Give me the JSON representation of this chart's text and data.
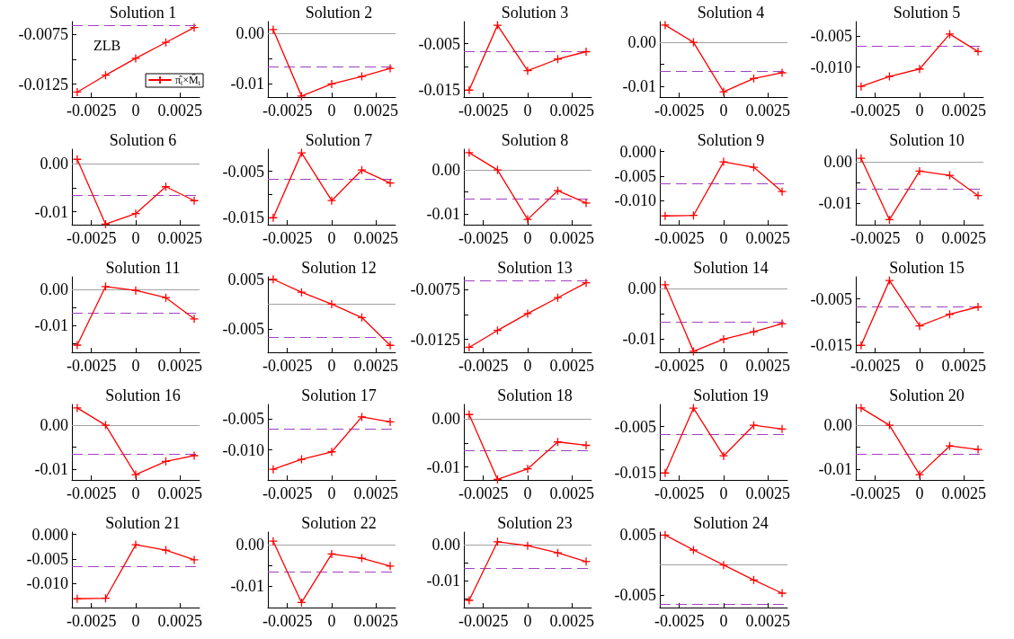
{
  "chart_data": [
    {
      "type": "line",
      "title": "Solution 1",
      "x": [
        -0.0033,
        -0.0017,
        0,
        0.0017,
        0.0033
      ],
      "xlim": [
        -0.0036,
        0.0036
      ],
      "xticks": [
        -0.0025,
        0,
        0.0025
      ],
      "ylim": [
        -0.0138,
        -0.0062
      ],
      "yticks": [
        -0.0075,
        {
          "value": -0.01,
          "label": null
        },
        -0.0125
      ],
      "marker": "cross",
      "line_style": "solid",
      "legend": "bottom right",
      "annotations": [
        "ZLB"
      ],
      "series": [
        {
          "name": "π̂$_{t}$×M̂$_{t}$",
          "color": "#ff0000",
          "values": [
            -0.0133,
            -0.0116,
            -0.0099,
            -0.0083,
            -0.0068
          ]
        }
      ],
      "ref_lines": [
        {
          "axis": "y",
          "value": -0.0066,
          "color": "#a040c0",
          "line_style": "dashed"
        }
      ]
    },
    {
      "type": "line",
      "title": "Solution 2",
      "x": [
        -0.0033,
        -0.0017,
        0,
        0.0017,
        0.0033
      ],
      "xlim": [
        -0.0036,
        0.0036
      ],
      "xticks": [
        -0.0025,
        0,
        0.0025
      ],
      "ylim": [
        -0.0126,
        0.0024
      ],
      "yticks": [
        {
          "value": 0,
          "label": "0.00"
        },
        {
          "value": -0.005,
          "label": null
        },
        -0.01
      ],
      "marker": "cross",
      "line_style": "solid",
      "series": [
        {
          "color": "#ff0000",
          "values": [
            0.0008,
            -0.0124,
            -0.01,
            -0.0085,
            -0.0069
          ]
        }
      ],
      "ref_lines": [
        {
          "axis": "y",
          "value": 0,
          "color": "#a0a0a0",
          "line_style": "solid"
        },
        {
          "axis": "y",
          "value": -0.0066,
          "color": "#a040c0",
          "line_style": "dashed"
        }
      ]
    },
    {
      "type": "line",
      "title": "Solution 3",
      "x": [
        -0.0033,
        -0.0017,
        0,
        0.0017,
        0.0033
      ],
      "xlim": [
        -0.0036,
        0.0036
      ],
      "xticks": [
        -0.0025,
        0,
        0.0025
      ],
      "ylim": [
        -0.0165,
        -0.0002
      ],
      "yticks": [
        -0.005,
        {
          "value": -0.01,
          "label": null
        },
        -0.015
      ],
      "marker": "cross",
      "line_style": "solid",
      "series": [
        {
          "color": "#ff0000",
          "values": [
            -0.015,
            -0.001,
            -0.0108,
            -0.0083,
            -0.0067
          ]
        }
      ],
      "ref_lines": [
        {
          "axis": "y",
          "value": -0.0066,
          "color": "#a040c0",
          "line_style": "dashed"
        }
      ]
    },
    {
      "type": "line",
      "title": "Solution 4",
      "x": [
        -0.0033,
        -0.0017,
        0,
        0.0017,
        0.0033
      ],
      "xlim": [
        -0.0036,
        0.0036
      ],
      "xticks": [
        -0.0025,
        0,
        0.0025
      ],
      "ylim": [
        -0.0124,
        0.0047
      ],
      "yticks": [
        {
          "value": 0,
          "label": "0.00"
        },
        {
          "value": -0.005,
          "label": null
        },
        -0.01
      ],
      "marker": "cross",
      "line_style": "solid",
      "series": [
        {
          "color": "#ff0000",
          "values": [
            0.0039,
            0,
            -0.0112,
            -0.0082,
            -0.0069
          ]
        }
      ],
      "ref_lines": [
        {
          "axis": "y",
          "value": 0,
          "color": "#a0a0a0",
          "line_style": "solid"
        },
        {
          "axis": "y",
          "value": -0.0066,
          "color": "#a040c0",
          "line_style": "dashed"
        }
      ]
    },
    {
      "type": "line",
      "title": "Solution 5",
      "x": [
        -0.0033,
        -0.0017,
        0,
        0.0017,
        0.0033
      ],
      "xlim": [
        -0.0036,
        0.0036
      ],
      "xticks": [
        -0.0025,
        0,
        0.0025
      ],
      "ylim": [
        -0.0148,
        -0.0027
      ],
      "yticks": [
        -0.005,
        {
          "value": -0.01,
          "label": "-0.010"
        }
      ],
      "marker": "cross",
      "line_style": "solid",
      "series": [
        {
          "color": "#ff0000",
          "values": [
            -0.0131,
            -0.0115,
            -0.0103,
            -0.0047,
            -0.0075
          ]
        }
      ],
      "ref_lines": [
        {
          "axis": "y",
          "value": -0.0066,
          "color": "#a040c0",
          "line_style": "dashed"
        }
      ]
    },
    {
      "type": "line",
      "title": "Solution 6",
      "x": [
        -0.0033,
        -0.0017,
        0,
        0.0017,
        0.0033
      ],
      "xlim": [
        -0.0036,
        0.0036
      ],
      "xticks": [
        -0.0025,
        0,
        0.0025
      ],
      "ylim": [
        -0.0127,
        0.003
      ],
      "yticks": [
        {
          "value": 0,
          "label": "0.00"
        },
        {
          "value": -0.005,
          "label": null
        },
        -0.01
      ],
      "marker": "cross",
      "line_style": "solid",
      "series": [
        {
          "color": "#ff0000",
          "values": [
            0.0009,
            -0.0126,
            -0.0104,
            -0.0048,
            -0.0077
          ]
        }
      ],
      "ref_lines": [
        {
          "axis": "y",
          "value": 0,
          "color": "#a0a0a0",
          "line_style": "solid"
        },
        {
          "axis": "y",
          "value": -0.0066,
          "color": "#a040c0",
          "line_style": "dashed"
        }
      ]
    },
    {
      "type": "line",
      "title": "Solution 7",
      "x": [
        -0.0033,
        -0.0017,
        0,
        0.0017,
        0.0033
      ],
      "xlim": [
        -0.0036,
        0.0036
      ],
      "xticks": [
        -0.0025,
        0,
        0.0025
      ],
      "ylim": [
        -0.0165,
        -0.0002
      ],
      "yticks": [
        -0.005,
        {
          "value": -0.01,
          "label": null
        },
        -0.015
      ],
      "marker": "cross",
      "line_style": "solid",
      "series": [
        {
          "color": "#ff0000",
          "values": [
            -0.015,
            -0.001,
            -0.0113,
            -0.0047,
            -0.0075
          ]
        }
      ],
      "ref_lines": [
        {
          "axis": "y",
          "value": -0.0066,
          "color": "#a040c0",
          "line_style": "dashed"
        }
      ]
    },
    {
      "type": "line",
      "title": "Solution 8",
      "x": [
        -0.0033,
        -0.0017,
        0,
        0.0017,
        0.0033
      ],
      "xlim": [
        -0.0036,
        0.0036
      ],
      "xticks": [
        -0.0025,
        0,
        0.0025
      ],
      "ylim": [
        -0.0124,
        0.0047
      ],
      "yticks": [
        {
          "value": 0,
          "label": "0.00"
        },
        {
          "value": -0.005,
          "label": null
        },
        -0.01
      ],
      "marker": "cross",
      "line_style": "solid",
      "series": [
        {
          "color": "#ff0000",
          "values": [
            0.0039,
            0,
            -0.0112,
            -0.0047,
            -0.0075
          ]
        }
      ],
      "ref_lines": [
        {
          "axis": "y",
          "value": 0,
          "color": "#a0a0a0",
          "line_style": "solid"
        },
        {
          "axis": "y",
          "value": -0.0066,
          "color": "#a040c0",
          "line_style": "dashed"
        }
      ]
    },
    {
      "type": "line",
      "title": "Solution 9",
      "x": [
        -0.0033,
        -0.0017,
        0,
        0.0017,
        0.0033
      ],
      "xlim": [
        -0.0036,
        0.0036
      ],
      "xticks": [
        -0.0025,
        0,
        0.0025
      ],
      "ylim": [
        -0.015,
        0.0005
      ],
      "yticks": [
        {
          "value": 0,
          "label": "0.000"
        },
        -0.005,
        {
          "value": -0.01,
          "label": "-0.010"
        }
      ],
      "marker": "cross",
      "line_style": "solid",
      "series": [
        {
          "color": "#ff0000",
          "values": [
            -0.0132,
            -0.0131,
            -0.0021,
            -0.0032,
            -0.0082
          ]
        }
      ],
      "ref_lines": [
        {
          "axis": "y",
          "value": -0.0066,
          "color": "#a040c0",
          "line_style": "dashed"
        }
      ]
    },
    {
      "type": "line",
      "title": "Solution 10",
      "x": [
        -0.0033,
        -0.0017,
        0,
        0.0017,
        0.0033
      ],
      "xlim": [
        -0.0036,
        0.0036
      ],
      "xticks": [
        -0.0025,
        0,
        0.0025
      ],
      "ylim": [
        -0.0152,
        0.003
      ],
      "yticks": [
        {
          "value": 0,
          "label": "0.00"
        },
        {
          "value": -0.005,
          "label": null
        },
        -0.01
      ],
      "marker": "cross",
      "line_style": "solid",
      "series": [
        {
          "color": "#ff0000",
          "values": [
            0.0008,
            -0.014,
            -0.0023,
            -0.0033,
            -0.0082
          ]
        }
      ],
      "ref_lines": [
        {
          "axis": "y",
          "value": 0,
          "color": "#a0a0a0",
          "line_style": "solid"
        },
        {
          "axis": "y",
          "value": -0.0066,
          "color": "#a040c0",
          "line_style": "dashed"
        }
      ]
    },
    {
      "type": "line",
      "title": "Solution 11",
      "x": [
        -0.0033,
        -0.0017,
        0,
        0.0017,
        0.0033
      ],
      "xlim": [
        -0.0036,
        0.0036
      ],
      "xticks": [
        -0.0025,
        0,
        0.0025
      ],
      "ylim": [
        -0.0175,
        0.0035
      ],
      "yticks": [
        {
          "value": 0,
          "label": "0.00"
        },
        {
          "value": -0.005,
          "label": null
        },
        -0.01,
        {
          "value": -0.015,
          "label": null
        }
      ],
      "marker": "cross",
      "line_style": "solid",
      "series": [
        {
          "color": "#ff0000",
          "values": [
            -0.0155,
            0.0008,
            -0.0003,
            -0.0023,
            -0.0082
          ]
        }
      ],
      "ref_lines": [
        {
          "axis": "y",
          "value": 0,
          "color": "#a0a0a0",
          "line_style": "solid"
        },
        {
          "axis": "y",
          "value": -0.0066,
          "color": "#a040c0",
          "line_style": "dashed"
        }
      ]
    },
    {
      "type": "line",
      "title": "Solution 12",
      "x": [
        -0.0033,
        -0.0017,
        0,
        0.0017,
        0.0033
      ],
      "xlim": [
        -0.0036,
        0.0036
      ],
      "xticks": [
        -0.0025,
        0,
        0.0025
      ],
      "ylim": [
        -0.0097,
        0.0055
      ],
      "yticks": [
        0.005,
        {
          "value": 0,
          "label": null
        },
        -0.005
      ],
      "marker": "cross",
      "line_style": "solid",
      "series": [
        {
          "color": "#ff0000",
          "values": [
            0.005,
            0.0024,
            0,
            -0.0027,
            -0.0083
          ]
        }
      ],
      "ref_lines": [
        {
          "axis": "y",
          "value": 0,
          "color": "#a0a0a0",
          "line_style": "solid"
        },
        {
          "axis": "y",
          "value": -0.0066,
          "color": "#a040c0",
          "line_style": "dashed"
        }
      ]
    },
    {
      "type": "line",
      "title": "Solution 13",
      "x": [
        -0.0033,
        -0.0017,
        0,
        0.0017,
        0.0033
      ],
      "xlim": [
        -0.0036,
        0.0036
      ],
      "xticks": [
        -0.0025,
        0,
        0.0025
      ],
      "ylim": [
        -0.0138,
        -0.0062
      ],
      "yticks": [
        -0.0075,
        {
          "value": -0.01,
          "label": null
        },
        -0.0125
      ],
      "marker": "cross",
      "line_style": "solid",
      "series": [
        {
          "color": "#ff0000",
          "values": [
            -0.0133,
            -0.0116,
            -0.0099,
            -0.0083,
            -0.0068
          ]
        }
      ],
      "ref_lines": [
        {
          "axis": "y",
          "value": -0.0066,
          "color": "#a040c0",
          "line_style": "dashed"
        }
      ]
    },
    {
      "type": "line",
      "title": "Solution 14",
      "x": [
        -0.0033,
        -0.0017,
        0,
        0.0017,
        0.0033
      ],
      "xlim": [
        -0.0036,
        0.0036
      ],
      "xticks": [
        -0.0025,
        0,
        0.0025
      ],
      "ylim": [
        -0.0126,
        0.0024
      ],
      "yticks": [
        {
          "value": 0,
          "label": "0.00"
        },
        {
          "value": -0.005,
          "label": null
        },
        -0.01
      ],
      "marker": "cross",
      "line_style": "solid",
      "series": [
        {
          "color": "#ff0000",
          "values": [
            0.0008,
            -0.0124,
            -0.01,
            -0.0085,
            -0.0069
          ]
        }
      ],
      "ref_lines": [
        {
          "axis": "y",
          "value": 0,
          "color": "#a0a0a0",
          "line_style": "solid"
        },
        {
          "axis": "y",
          "value": -0.0066,
          "color": "#a040c0",
          "line_style": "dashed"
        }
      ]
    },
    {
      "type": "line",
      "title": "Solution 15",
      "x": [
        -0.0033,
        -0.0017,
        0,
        0.0017,
        0.0033
      ],
      "xlim": [
        -0.0036,
        0.0036
      ],
      "xticks": [
        -0.0025,
        0,
        0.0025
      ],
      "ylim": [
        -0.0165,
        -0.0002
      ],
      "yticks": [
        -0.005,
        {
          "value": -0.01,
          "label": null
        },
        -0.015
      ],
      "marker": "cross",
      "line_style": "solid",
      "series": [
        {
          "color": "#ff0000",
          "values": [
            -0.015,
            -0.001,
            -0.0108,
            -0.0083,
            -0.0067
          ]
        }
      ],
      "ref_lines": [
        {
          "axis": "y",
          "value": -0.0066,
          "color": "#a040c0",
          "line_style": "dashed"
        }
      ]
    },
    {
      "type": "line",
      "title": "Solution 16",
      "x": [
        -0.0033,
        -0.0017,
        0,
        0.0017,
        0.0033
      ],
      "xlim": [
        -0.0036,
        0.0036
      ],
      "xticks": [
        -0.0025,
        0,
        0.0025
      ],
      "ylim": [
        -0.0124,
        0.0047
      ],
      "yticks": [
        {
          "value": 0,
          "label": "0.00"
        },
        {
          "value": -0.005,
          "label": null
        },
        -0.01
      ],
      "marker": "cross",
      "line_style": "solid",
      "series": [
        {
          "color": "#ff0000",
          "values": [
            0.0039,
            0,
            -0.0112,
            -0.0082,
            -0.0069
          ]
        }
      ],
      "ref_lines": [
        {
          "axis": "y",
          "value": 0,
          "color": "#a0a0a0",
          "line_style": "solid"
        },
        {
          "axis": "y",
          "value": -0.0066,
          "color": "#a040c0",
          "line_style": "dashed"
        }
      ]
    },
    {
      "type": "line",
      "title": "Solution 17",
      "x": [
        -0.0033,
        -0.0017,
        0,
        0.0017,
        0.0033
      ],
      "xlim": [
        -0.0036,
        0.0036
      ],
      "xticks": [
        -0.0025,
        0,
        0.0025
      ],
      "ylim": [
        -0.0148,
        -0.0027
      ],
      "yticks": [
        -0.005,
        {
          "value": -0.01,
          "label": "-0.010"
        }
      ],
      "marker": "cross",
      "line_style": "solid",
      "series": [
        {
          "color": "#ff0000",
          "values": [
            -0.0131,
            -0.0115,
            -0.0103,
            -0.0047,
            -0.0055
          ]
        }
      ],
      "ref_lines": [
        {
          "axis": "y",
          "value": -0.0066,
          "color": "#a040c0",
          "line_style": "dashed"
        }
      ]
    },
    {
      "type": "line",
      "title": "Solution 18",
      "x": [
        -0.0033,
        -0.0017,
        0,
        0.0017,
        0.0033
      ],
      "xlim": [
        -0.0036,
        0.0036
      ],
      "xticks": [
        -0.0025,
        0,
        0.0025
      ],
      "ylim": [
        -0.0127,
        0.003
      ],
      "yticks": [
        {
          "value": 0,
          "label": "0.00"
        },
        {
          "value": -0.005,
          "label": null
        },
        -0.01
      ],
      "marker": "cross",
      "line_style": "solid",
      "series": [
        {
          "color": "#ff0000",
          "values": [
            0.0009,
            -0.0126,
            -0.0104,
            -0.0048,
            -0.0055
          ]
        }
      ],
      "ref_lines": [
        {
          "axis": "y",
          "value": 0,
          "color": "#a0a0a0",
          "line_style": "solid"
        },
        {
          "axis": "y",
          "value": -0.0066,
          "color": "#a040c0",
          "line_style": "dashed"
        }
      ]
    },
    {
      "type": "line",
      "title": "Solution 19",
      "x": [
        -0.0033,
        -0.0017,
        0,
        0.0017,
        0.0033
      ],
      "xlim": [
        -0.0036,
        0.0036
      ],
      "xticks": [
        -0.0025,
        0,
        0.0025
      ],
      "ylim": [
        -0.0165,
        -0.0002
      ],
      "yticks": [
        -0.005,
        {
          "value": -0.01,
          "label": null
        },
        -0.015
      ],
      "marker": "cross",
      "line_style": "solid",
      "series": [
        {
          "color": "#ff0000",
          "values": [
            -0.015,
            -0.001,
            -0.0113,
            -0.0047,
            -0.0055
          ]
        }
      ],
      "ref_lines": [
        {
          "axis": "y",
          "value": -0.0066,
          "color": "#a040c0",
          "line_style": "dashed"
        }
      ]
    },
    {
      "type": "line",
      "title": "Solution 20",
      "x": [
        -0.0033,
        -0.0017,
        0,
        0.0017,
        0.0033
      ],
      "xlim": [
        -0.0036,
        0.0036
      ],
      "xticks": [
        -0.0025,
        0,
        0.0025
      ],
      "ylim": [
        -0.0124,
        0.0047
      ],
      "yticks": [
        {
          "value": 0,
          "label": "0.00"
        },
        {
          "value": -0.005,
          "label": null
        },
        -0.01
      ],
      "marker": "cross",
      "line_style": "solid",
      "series": [
        {
          "color": "#ff0000",
          "values": [
            0.0039,
            0,
            -0.0112,
            -0.0047,
            -0.0055
          ]
        }
      ],
      "ref_lines": [
        {
          "axis": "y",
          "value": 0,
          "color": "#a0a0a0",
          "line_style": "solid"
        },
        {
          "axis": "y",
          "value": -0.0066,
          "color": "#a040c0",
          "line_style": "dashed"
        }
      ]
    },
    {
      "type": "line",
      "title": "Solution 21",
      "x": [
        -0.0033,
        -0.0017,
        0,
        0.0017,
        0.0033
      ],
      "xlim": [
        -0.0036,
        0.0036
      ],
      "xticks": [
        -0.0025,
        0,
        0.0025
      ],
      "ylim": [
        -0.015,
        0.0005
      ],
      "yticks": [
        {
          "value": 0,
          "label": "0.000"
        },
        -0.005,
        {
          "value": -0.01,
          "label": "-0.010"
        }
      ],
      "marker": "cross",
      "line_style": "solid",
      "series": [
        {
          "color": "#ff0000",
          "values": [
            -0.0132,
            -0.0131,
            -0.0021,
            -0.0032,
            -0.0052
          ]
        }
      ],
      "ref_lines": [
        {
          "axis": "y",
          "value": -0.0066,
          "color": "#a040c0",
          "line_style": "dashed"
        }
      ]
    },
    {
      "type": "line",
      "title": "Solution 22",
      "x": [
        -0.0033,
        -0.0017,
        0,
        0.0017,
        0.0033
      ],
      "xlim": [
        -0.0036,
        0.0036
      ],
      "xticks": [
        -0.0025,
        0,
        0.0025
      ],
      "ylim": [
        -0.0152,
        0.003
      ],
      "yticks": [
        {
          "value": 0,
          "label": "0.00"
        },
        {
          "value": -0.005,
          "label": null
        },
        -0.01
      ],
      "marker": "cross",
      "line_style": "solid",
      "series": [
        {
          "color": "#ff0000",
          "values": [
            0.0008,
            -0.014,
            -0.0023,
            -0.0033,
            -0.0052
          ]
        }
      ],
      "ref_lines": [
        {
          "axis": "y",
          "value": 0,
          "color": "#a0a0a0",
          "line_style": "solid"
        },
        {
          "axis": "y",
          "value": -0.0066,
          "color": "#a040c0",
          "line_style": "dashed"
        }
      ]
    },
    {
      "type": "line",
      "title": "Solution 23",
      "x": [
        -0.0033,
        -0.0017,
        0,
        0.0017,
        0.0033
      ],
      "xlim": [
        -0.0036,
        0.0036
      ],
      "xticks": [
        -0.0025,
        0,
        0.0025
      ],
      "ylim": [
        -0.0175,
        0.0035
      ],
      "yticks": [
        {
          "value": 0,
          "label": "0.00"
        },
        {
          "value": -0.005,
          "label": null
        },
        -0.01,
        {
          "value": -0.015,
          "label": null
        }
      ],
      "marker": "cross",
      "line_style": "solid",
      "series": [
        {
          "color": "#ff0000",
          "values": [
            -0.0155,
            0.0008,
            -0.0003,
            -0.0023,
            -0.0047
          ]
        }
      ],
      "ref_lines": [
        {
          "axis": "y",
          "value": 0,
          "color": "#a0a0a0",
          "line_style": "solid"
        },
        {
          "axis": "y",
          "value": -0.0066,
          "color": "#a040c0",
          "line_style": "dashed"
        }
      ]
    },
    {
      "type": "line",
      "title": "Solution 24",
      "x": [
        -0.0033,
        -0.0017,
        0,
        0.0017,
        0.0033
      ],
      "xlim": [
        -0.0036,
        0.0036
      ],
      "xticks": [
        -0.0025,
        0,
        0.0025
      ],
      "ylim": [
        -0.0071,
        0.0055
      ],
      "yticks": [
        0.005,
        {
          "value": 0,
          "label": null
        },
        -0.005
      ],
      "marker": "cross",
      "line_style": "solid",
      "series": [
        {
          "color": "#ff0000",
          "values": [
            0.005,
            0.0025,
            0,
            -0.0025,
            -0.0047
          ]
        }
      ],
      "ref_lines": [
        {
          "axis": "y",
          "value": 0,
          "color": "#a0a0a0",
          "line_style": "solid"
        },
        {
          "axis": "y",
          "value": -0.0066,
          "color": "#a040c0",
          "line_style": "dashed"
        }
      ]
    }
  ]
}
